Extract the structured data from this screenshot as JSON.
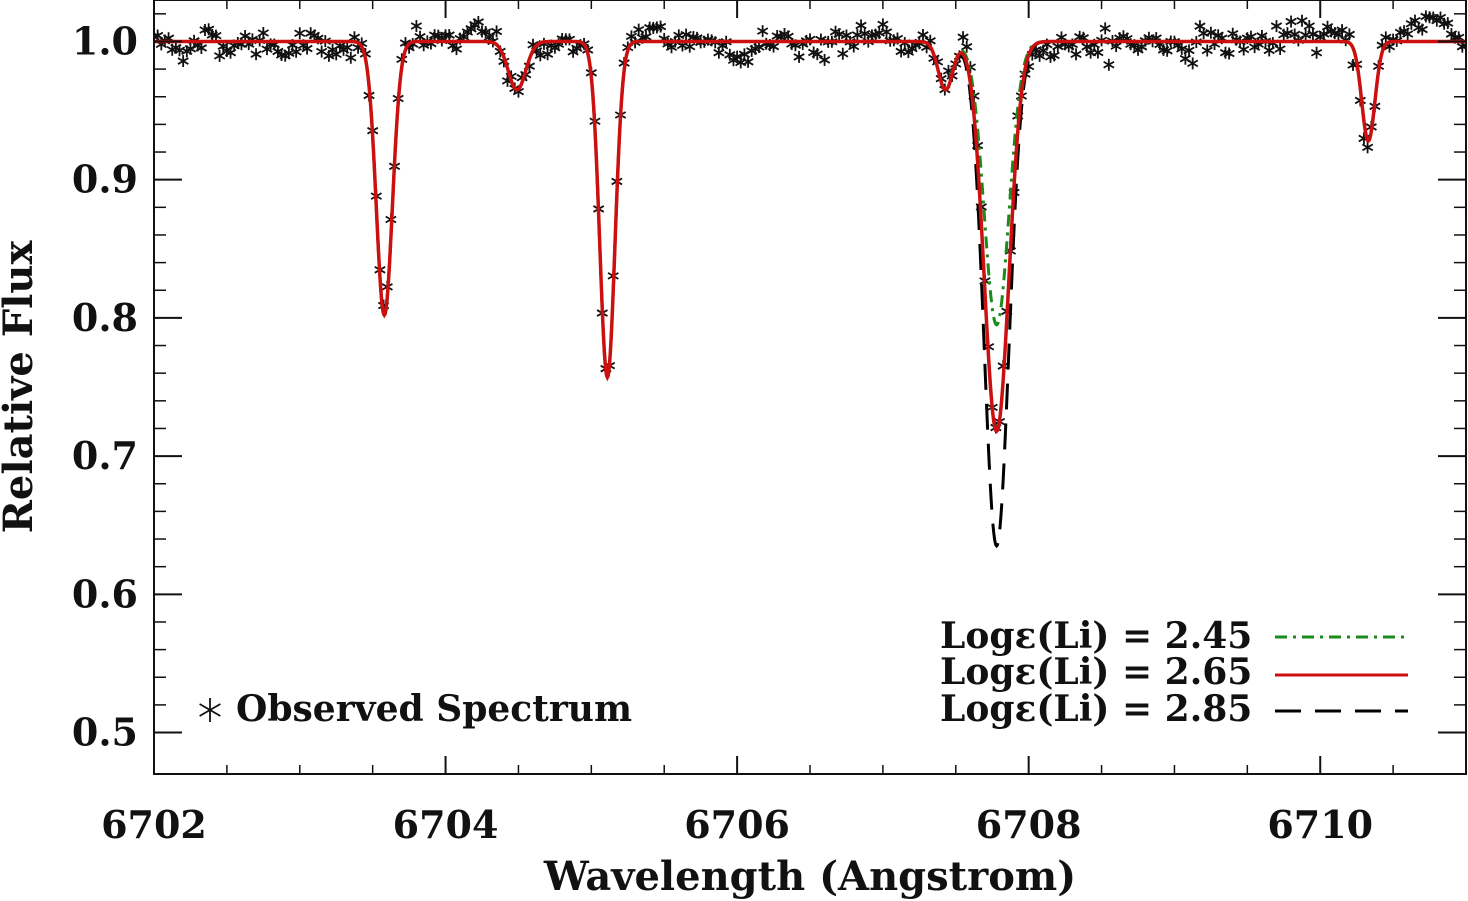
{
  "chart_data": {
    "type": "line",
    "xlabel": "Wavelength (Angstrom)",
    "ylabel": "Relative Flux",
    "xlim": [
      6702,
      6711
    ],
    "ylim": [
      0.47,
      1.03
    ],
    "xticks": [
      6702,
      6704,
      6706,
      6708,
      6710
    ],
    "xtick_labels": [
      "6702",
      "6704",
      "6706",
      "6708",
      "6710"
    ],
    "yticks": [
      0.5,
      0.6,
      0.7,
      0.8,
      0.9,
      1.0
    ],
    "ytick_labels": [
      "0.5",
      "0.6",
      "0.7",
      "0.8",
      "0.9",
      "1.0"
    ],
    "continuum": 1.0,
    "absorption_lines": [
      {
        "center": 6703.58,
        "depth": 0.198,
        "sigma": 0.055
      },
      {
        "center": 6704.49,
        "depth": 0.035,
        "sigma": 0.06
      },
      {
        "center": 6705.11,
        "depth": 0.243,
        "sigma": 0.052
      },
      {
        "center": 6707.43,
        "depth": 0.035,
        "sigma": 0.05
      },
      {
        "center": 6710.33,
        "depth": 0.072,
        "sigma": 0.045
      }
    ],
    "li_line": {
      "center": 6707.78,
      "sigma": 0.085
    },
    "series": [
      {
        "name": "Logε(Li) = 2.45",
        "abundance": "2.45",
        "li_depth": 0.205,
        "color": "#1a8c1a",
        "style": "dash-dot"
      },
      {
        "name": "Logε(Li) = 2.65",
        "abundance": "2.65",
        "li_depth": 0.282,
        "color": "#cc1010",
        "style": "solid"
      },
      {
        "name": "Logε(Li) = 2.85",
        "abundance": "2.85",
        "li_depth": 0.365,
        "color": "#000000",
        "style": "long-dash"
      }
    ],
    "observed_series": {
      "name": "Observed Spectrum",
      "marker": "asterisk",
      "color": "#111111",
      "li_depth": 0.28,
      "noise_amplitude": 0.007,
      "sampling_step": 0.025,
      "extra_features": [
        {
          "center": 6710.75,
          "height": 0.018,
          "sigma": 0.12
        }
      ]
    },
    "legend": {
      "position": "bottom-right",
      "entries": [
        {
          "label": "Logε(Li) = 2.45",
          "color": "#1a8c1a",
          "style": "dash-dot"
        },
        {
          "label": "Logε(Li) = 2.65",
          "color": "#cc1010",
          "style": "solid"
        },
        {
          "label": "Logε(Li) = 2.85",
          "color": "#000000",
          "style": "long-dash"
        }
      ],
      "observed_label": "Observed Spectrum",
      "observed_position": "bottom-left"
    }
  }
}
